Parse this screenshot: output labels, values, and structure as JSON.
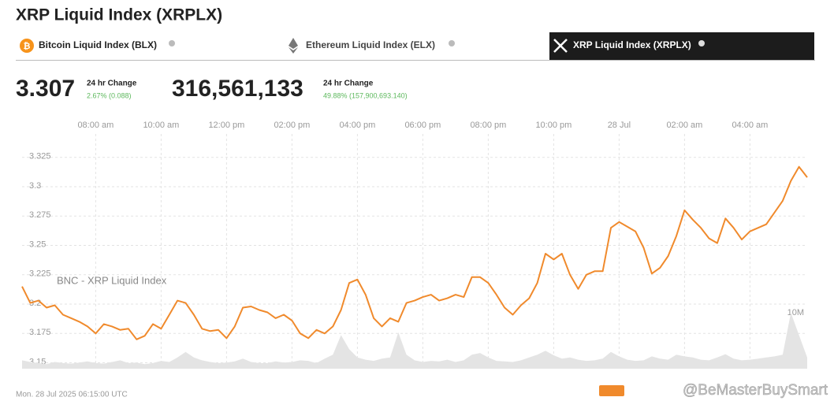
{
  "header": {
    "title": "XRP Liquid Index (XRPLX)",
    "tabs": [
      "Bitcoin Liquid Index (BLX)",
      "Ethereum Liquid Index (ELX)",
      "XRP Liquid Index (XRPLX)"
    ],
    "price": "3.307",
    "price_change_label": "24 hr Change",
    "price_change": "2.67% (0.088)",
    "volume": "316,561,133",
    "volume_change_label": "24 hr Change",
    "volume_change": "49.88% (157,900,693.140)",
    "timestamp": "Mon. 28 Jul 2025 06:15:00 UTC",
    "watermark": "@BeMasterBuySmart"
  },
  "chart_data": {
    "type": "line",
    "annotation": "BNC - XRP Liquid Index",
    "categories": [
      null,
      null,
      null,
      null,
      null,
      null,
      null,
      null,
      null,
      "08:00 am",
      null,
      null,
      null,
      null,
      null,
      null,
      null,
      "10:00 am",
      null,
      null,
      null,
      null,
      null,
      null,
      null,
      "12:00 pm",
      null,
      null,
      null,
      null,
      null,
      null,
      null,
      "02:00 pm",
      null,
      null,
      null,
      null,
      null,
      null,
      null,
      "04:00 pm",
      null,
      null,
      null,
      null,
      null,
      null,
      null,
      "06:00 pm",
      null,
      null,
      null,
      null,
      null,
      null,
      null,
      "08:00 pm",
      null,
      null,
      null,
      null,
      null,
      null,
      null,
      "10:00 pm",
      null,
      null,
      null,
      null,
      null,
      null,
      null,
      "28 Jul",
      null,
      null,
      null,
      null,
      null,
      null,
      null,
      "02:00 am",
      null,
      null,
      null,
      null,
      null,
      null,
      null,
      "04:00 am",
      null,
      null,
      null,
      null,
      null,
      null,
      null
    ],
    "series": [
      {
        "color": "#f08a2c",
        "values": [
          3.215,
          3.201,
          3.203,
          3.197,
          3.199,
          3.191,
          3.188,
          3.185,
          3.181,
          3.175,
          3.183,
          3.181,
          3.178,
          3.179,
          3.17,
          3.173,
          3.183,
          3.179,
          3.191,
          3.203,
          3.201,
          3.191,
          3.179,
          3.177,
          3.178,
          3.171,
          3.181,
          3.197,
          3.198,
          3.195,
          3.193,
          3.188,
          3.191,
          3.186,
          3.175,
          3.171,
          3.178,
          3.175,
          3.181,
          3.195,
          3.218,
          3.221,
          3.208,
          3.188,
          3.181,
          3.188,
          3.185,
          3.201,
          3.203,
          3.206,
          3.208,
          3.203,
          3.205,
          3.208,
          3.206,
          3.223,
          3.223,
          3.218,
          3.208,
          3.197,
          3.191,
          3.199,
          3.205,
          3.218,
          3.243,
          3.238,
          3.243,
          3.225,
          3.213,
          3.225,
          3.228,
          3.228,
          3.265,
          3.27,
          3.266,
          3.262,
          3.248,
          3.226,
          3.231,
          3.241,
          3.258,
          3.28,
          3.272,
          3.265,
          3.256,
          3.252,
          3.273,
          3.265,
          3.255,
          3.262,
          3.265,
          3.268,
          3.278,
          3.288,
          3.305,
          3.317,
          3.308
        ]
      },
      {
        "color": "#e4e4e4",
        "axis": "y2",
        "values": [
          1500000,
          1200000,
          1000000,
          800000,
          1200000,
          1000000,
          900000,
          1100000,
          1300000,
          1000000,
          900000,
          1200000,
          1500000,
          1000000,
          1100000,
          800000,
          1000000,
          1400000,
          1200000,
          2000000,
          3000000,
          2000000,
          1500000,
          1200000,
          1000000,
          1100000,
          1300000,
          1800000,
          1200000,
          1000000,
          1000000,
          1300000,
          1100000,
          1200000,
          1500000,
          1400000,
          1000000,
          1800000,
          2500000,
          6000000,
          3500000,
          2000000,
          1600000,
          1400000,
          1800000,
          2000000,
          6500000,
          2500000,
          1500000,
          1200000,
          1400000,
          1300000,
          1600000,
          1200000,
          1500000,
          2500000,
          2800000,
          2000000,
          1400000,
          1300000,
          1200000,
          1500000,
          2000000,
          2500000,
          3200000,
          2400000,
          1800000,
          2000000,
          1600000,
          1400000,
          1500000,
          1800000,
          3000000,
          2200000,
          1600000,
          1400000,
          1500000,
          2200000,
          1800000,
          1600000,
          2500000,
          2200000,
          2000000,
          1600000,
          1500000,
          2000000,
          2600000,
          1800000,
          1500000,
          1600000,
          1800000,
          2000000,
          2200000,
          2500000,
          10000000,
          6000000,
          2000000
        ]
      }
    ],
    "ylim": [
      3.145,
      3.345
    ],
    "yticks": [
      3.15,
      3.175,
      3.2,
      3.225,
      3.25,
      3.275,
      3.3,
      3.325
    ],
    "y2lim": [
      0,
      42000000
    ],
    "y2ticks": [
      {
        "value": 10000000,
        "label": "10M"
      }
    ],
    "grid": true
  }
}
